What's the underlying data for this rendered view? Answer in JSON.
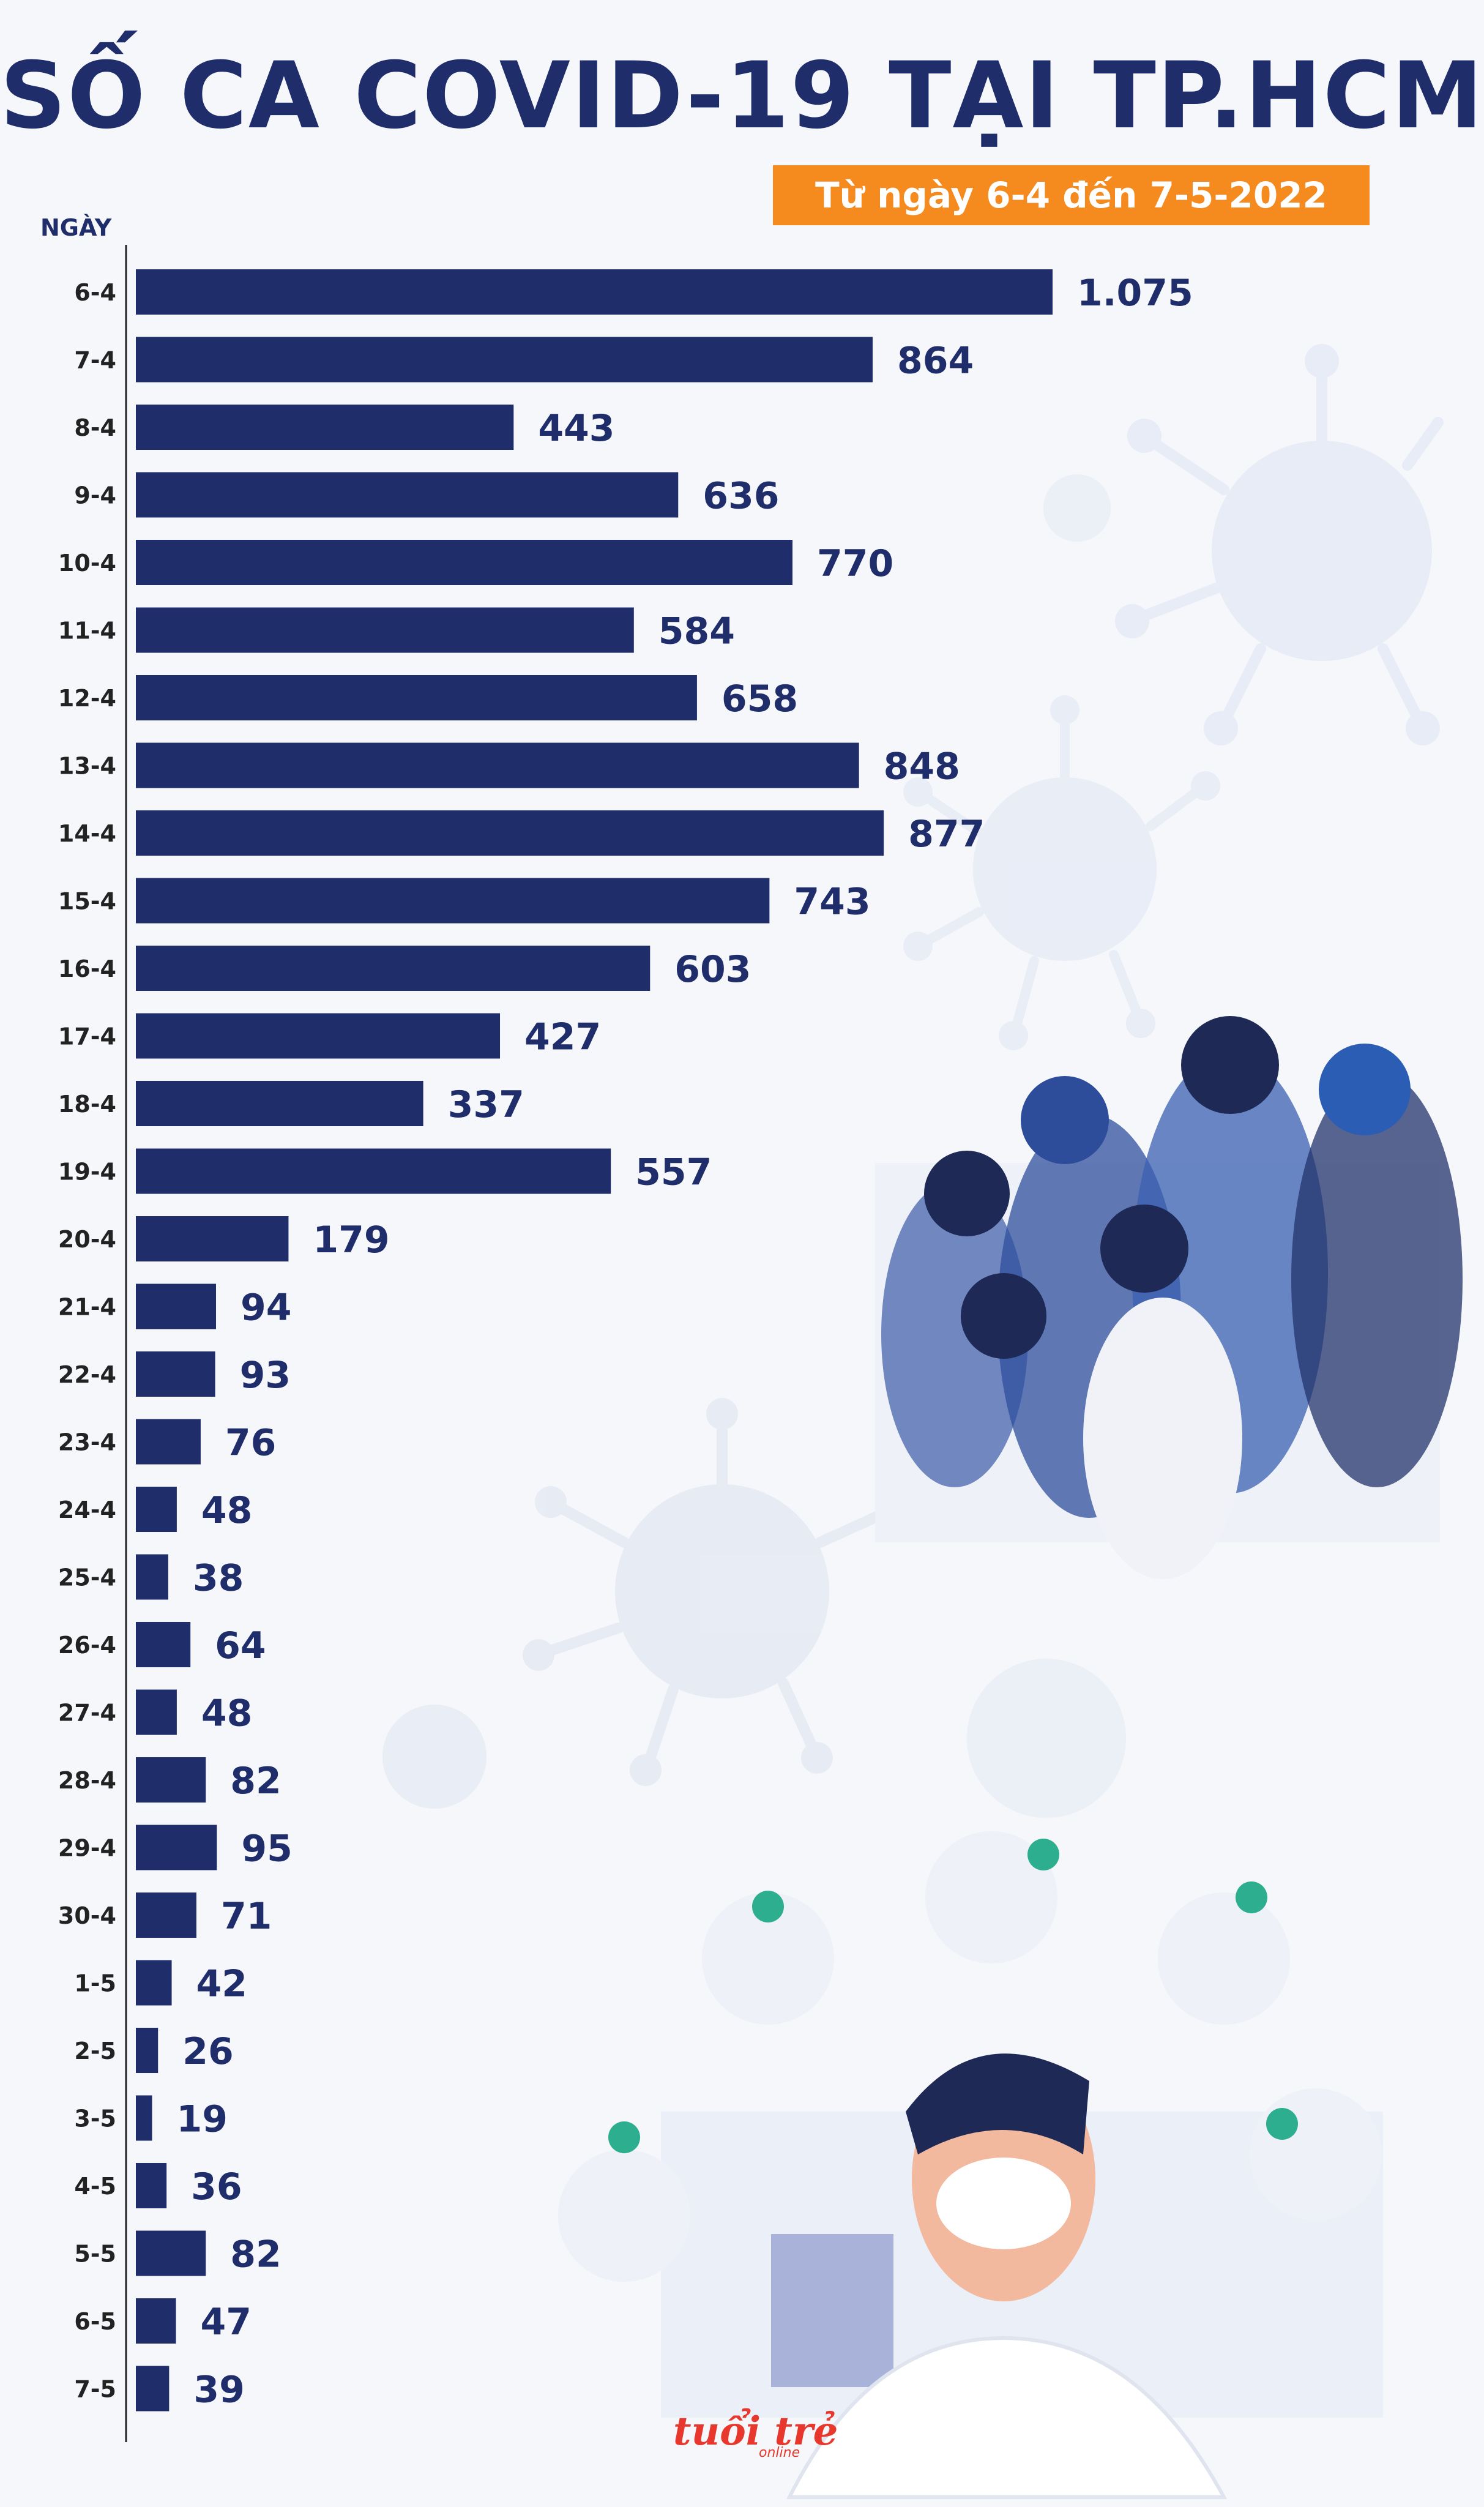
{
  "chart_data": {
    "type": "bar",
    "orientation": "horizontal",
    "title": "SỐ CA COVID-19 TẠI TP.HCM",
    "subtitle": "Từ ngày 6-4 đến 7-5-2022",
    "ylabel": "NGÀY",
    "xlim": [
      0,
      1075
    ],
    "categories": [
      "6-4",
      "7-4",
      "8-4",
      "9-4",
      "10-4",
      "11-4",
      "12-4",
      "13-4",
      "14-4",
      "15-4",
      "16-4",
      "17-4",
      "18-4",
      "19-4",
      "20-4",
      "21-4",
      "22-4",
      "23-4",
      "24-4",
      "25-4",
      "26-4",
      "27-4",
      "28-4",
      "29-4",
      "30-4",
      "1-5",
      "2-5",
      "3-5",
      "4-5",
      "5-5",
      "6-5",
      "7-5"
    ],
    "values": [
      1075,
      864,
      443,
      636,
      770,
      584,
      658,
      848,
      877,
      743,
      603,
      427,
      337,
      557,
      179,
      94,
      93,
      76,
      48,
      38,
      64,
      48,
      82,
      95,
      71,
      42,
      26,
      19,
      36,
      82,
      47,
      39
    ],
    "labels": [
      "1.075",
      "864",
      "443",
      "636",
      "770",
      "584",
      "658",
      "848",
      "877",
      "743",
      "603",
      "427",
      "337",
      "557",
      "179",
      "94",
      "93",
      "76",
      "48",
      "38",
      "64",
      "48",
      "82",
      "95",
      "71",
      "42",
      "26",
      "19",
      "36",
      "82",
      "47",
      "39"
    ]
  },
  "logo": {
    "main": "tuổi trẻ",
    "sub": "online"
  },
  "colors": {
    "bar": "#1f2d6b",
    "text": "#1f2d6b",
    "accent": "#f58a1f",
    "brand": "#e8372c"
  }
}
